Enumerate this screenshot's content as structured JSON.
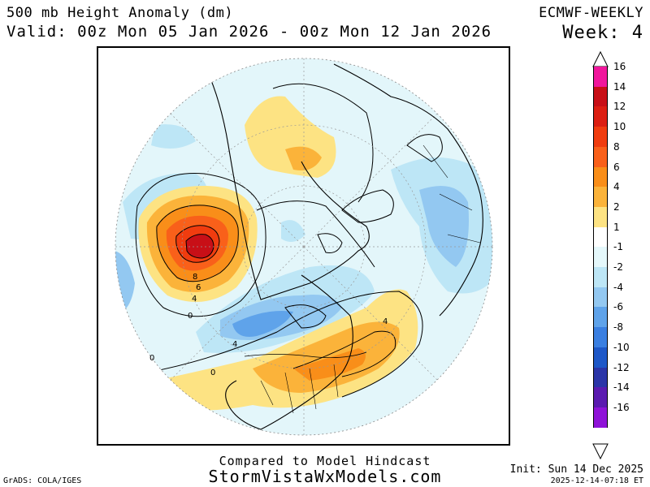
{
  "header": {
    "title": "500 mb Height Anomaly (dm)",
    "valid": "Valid: 00z Mon 05 Jan 2026 - 00z Mon 12 Jan 2026",
    "model": "ECMWF-WEEKLY",
    "week": "Week: 4"
  },
  "footer": {
    "compared": "Compared to Model Hindcast",
    "site": "StormVistaWxModels.com",
    "init": "Init: Sun 14 Dec 2025",
    "timestamp": "2025-12-14-07:18 ET",
    "credit": "GrADS: COLA/IGES"
  },
  "map": {
    "projection": "north polar stereographic",
    "contour_labels": [
      "8",
      "6",
      "4",
      "0",
      "4",
      "0",
      "0",
      "4"
    ]
  },
  "legend": {
    "items": [
      {
        "label": "16",
        "color": "#f0169c"
      },
      {
        "label": "14",
        "color": "#c80f17"
      },
      {
        "label": "12",
        "color": "#dc1e12"
      },
      {
        "label": "10",
        "color": "#f03c0f"
      },
      {
        "label": "8",
        "color": "#f9601a"
      },
      {
        "label": "6",
        "color": "#f98e19"
      },
      {
        "label": "4",
        "color": "#fbb33a"
      },
      {
        "label": "2",
        "color": "#fde383"
      },
      {
        "label": "1",
        "color": "#ffffff"
      },
      {
        "label": "-1",
        "color": "#e5f8fb"
      },
      {
        "label": "-2",
        "color": "#bde6f6"
      },
      {
        "label": "-4",
        "color": "#93c8f1"
      },
      {
        "label": "-6",
        "color": "#5fa3ea"
      },
      {
        "label": "-8",
        "color": "#3a7fe1"
      },
      {
        "label": "-10",
        "color": "#1e58c8"
      },
      {
        "label": "-12",
        "color": "#2b35a8"
      },
      {
        "label": "-14",
        "color": "#5b1bb0"
      },
      {
        "label": "-16",
        "color": "#8f13d8"
      }
    ]
  }
}
